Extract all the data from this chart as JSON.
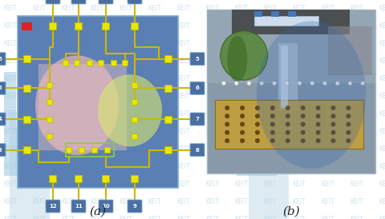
{
  "fig_width": 4.81,
  "fig_height": 2.74,
  "dpi": 100,
  "background_color": "#ffffff",
  "watermark_text": "KEIT",
  "watermark_color": "#aaccdd",
  "label_a": "(a)",
  "label_b": "(b)",
  "label_fontsize": 11,
  "label_color": "#222222",
  "chip_bg": "#5a7fb5",
  "chip_edge": "#7aaad0",
  "pad_color": "#e8e800",
  "pad_edge": "#b8b800",
  "trace_color": "#ccb800",
  "trace_green": "#88cc44",
  "pin_bg": "#4a6fa0",
  "pin_fg": "#ffffff",
  "inner_pink": "#f5b8b8",
  "inner_pink2": "#e8c0c0",
  "inner_yg": "#d8e870",
  "red_sq": "#dd2222",
  "photo_bg_top": "#b0b8c0",
  "photo_bg_bot": "#8090a0",
  "green_sphere": "#5a8840",
  "green_sphere_edge": "#3a6020",
  "yellow_chip": "#c8a030",
  "yellow_chip_edge": "#886600",
  "blue_overlay": "#3366aa",
  "pi_color": "#88bbdd"
}
